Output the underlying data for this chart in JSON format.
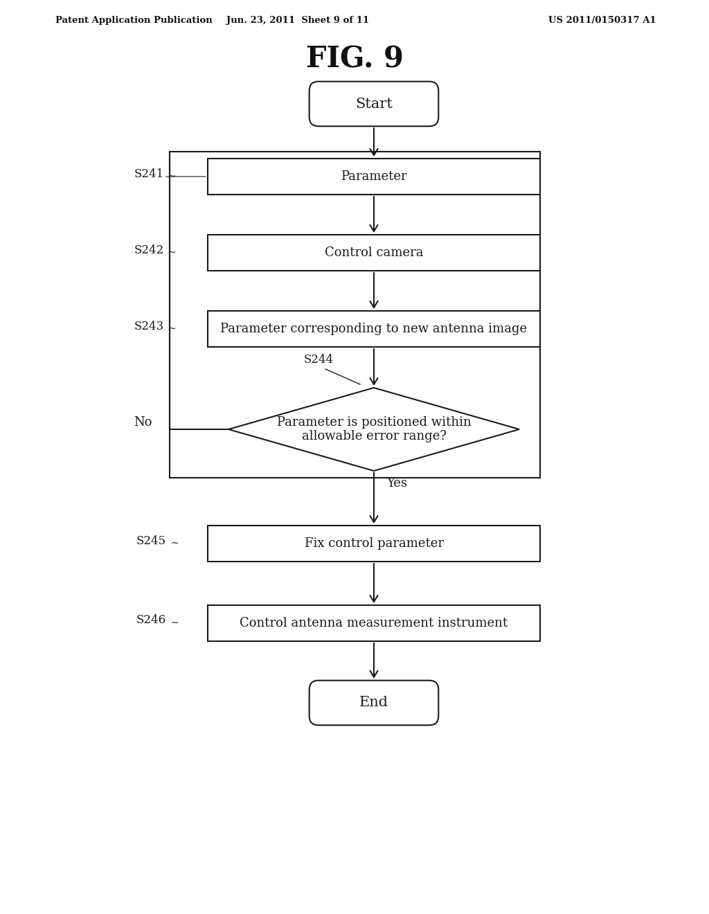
{
  "title": "FIG. 9",
  "header_left": "Patent Application Publication",
  "header_center": "Jun. 23, 2011  Sheet 9 of 11",
  "header_right": "US 2011/0150317 A1",
  "background_color": "#ffffff",
  "flowchart": {
    "start_label": "Start",
    "end_label": "End",
    "steps": [
      {
        "id": "S241",
        "label": "Parameter",
        "type": "rect"
      },
      {
        "id": "S242",
        "label": "Control camera",
        "type": "rect"
      },
      {
        "id": "S243",
        "label": "Parameter corresponding to new antenna image",
        "type": "rect"
      },
      {
        "id": "S244",
        "label": "Parameter is positioned within\nallowable error range?",
        "type": "diamond"
      },
      {
        "id": "S245",
        "label": "Fix control parameter",
        "type": "rect"
      },
      {
        "id": "S246",
        "label": "Control antenna measurement instrument",
        "type": "rect"
      }
    ],
    "diamond_no_label": "No",
    "diamond_yes_label": "Yes",
    "s244_label_line": "S244"
  }
}
